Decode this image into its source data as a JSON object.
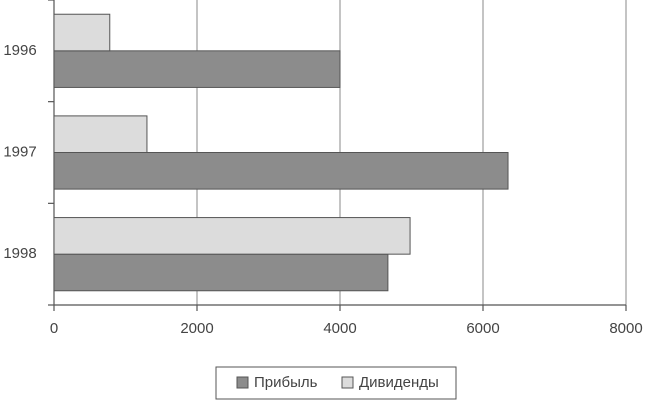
{
  "chart_data": {
    "type": "hbar",
    "categories": [
      "1996",
      "1997",
      "1998"
    ],
    "series": [
      {
        "name": "Прибыль",
        "color": "#8c8c8c",
        "values": [
          4000,
          6350,
          4670
        ]
      },
      {
        "name": "Дивиденды",
        "color": "#dcdcdc",
        "values": [
          780,
          1300,
          4980
        ]
      }
    ],
    "xlim": [
      0,
      8000
    ],
    "xticks": [
      0,
      2000,
      4000,
      6000,
      8000
    ],
    "grid": true,
    "legend": "bottom"
  }
}
